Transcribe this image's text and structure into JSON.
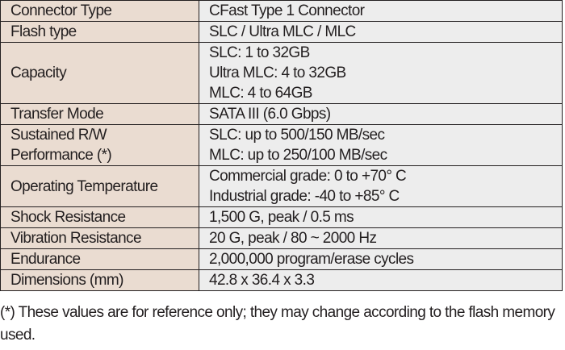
{
  "spec_table": {
    "rows": [
      {
        "label_lines": [
          "Connector Type"
        ],
        "value_lines": [
          "CFast Type 1 Connector"
        ]
      },
      {
        "label_lines": [
          "Flash type"
        ],
        "value_lines": [
          "SLC / Ultra MLC / MLC"
        ]
      },
      {
        "label_lines": [
          "Capacity"
        ],
        "value_lines": [
          "SLC: 1 to 32GB",
          "Ultra MLC: 4 to 32GB",
          "MLC: 4 to 64GB"
        ]
      },
      {
        "label_lines": [
          "Transfer Mode"
        ],
        "value_lines": [
          "SATA III (6.0 Gbps)"
        ]
      },
      {
        "label_lines": [
          "Sustained R/W",
          "Performance  (*)"
        ],
        "value_lines": [
          "SLC: up to 500/150 MB/sec",
          "MLC: up to 250/100 MB/sec"
        ]
      },
      {
        "label_lines": [
          "Operating Temperature"
        ],
        "value_lines": [
          "Commercial grade: 0 to +70° C",
          "Industrial grade: -40 to +85° C"
        ]
      },
      {
        "label_lines": [
          "Shock Resistance"
        ],
        "value_lines": [
          "1,500 G, peak / 0.5 ms"
        ]
      },
      {
        "label_lines": [
          "Vibration Resistance"
        ],
        "value_lines": [
          "20 G, peak / 80 ~ 2000 Hz"
        ]
      },
      {
        "label_lines": [
          "Endurance"
        ],
        "value_lines": [
          "2,000,000 program/erase cycles"
        ]
      },
      {
        "label_lines": [
          "Dimensions (mm)"
        ],
        "value_lines": [
          "42.8 x 36.4 x 3.3"
        ]
      }
    ]
  },
  "footnote": "(*) These values are for reference only; they may change according to the flash memory used.",
  "colors": {
    "label_bg": "#eadcd1",
    "value_bg": "#ededed",
    "text": "#231f20"
  }
}
